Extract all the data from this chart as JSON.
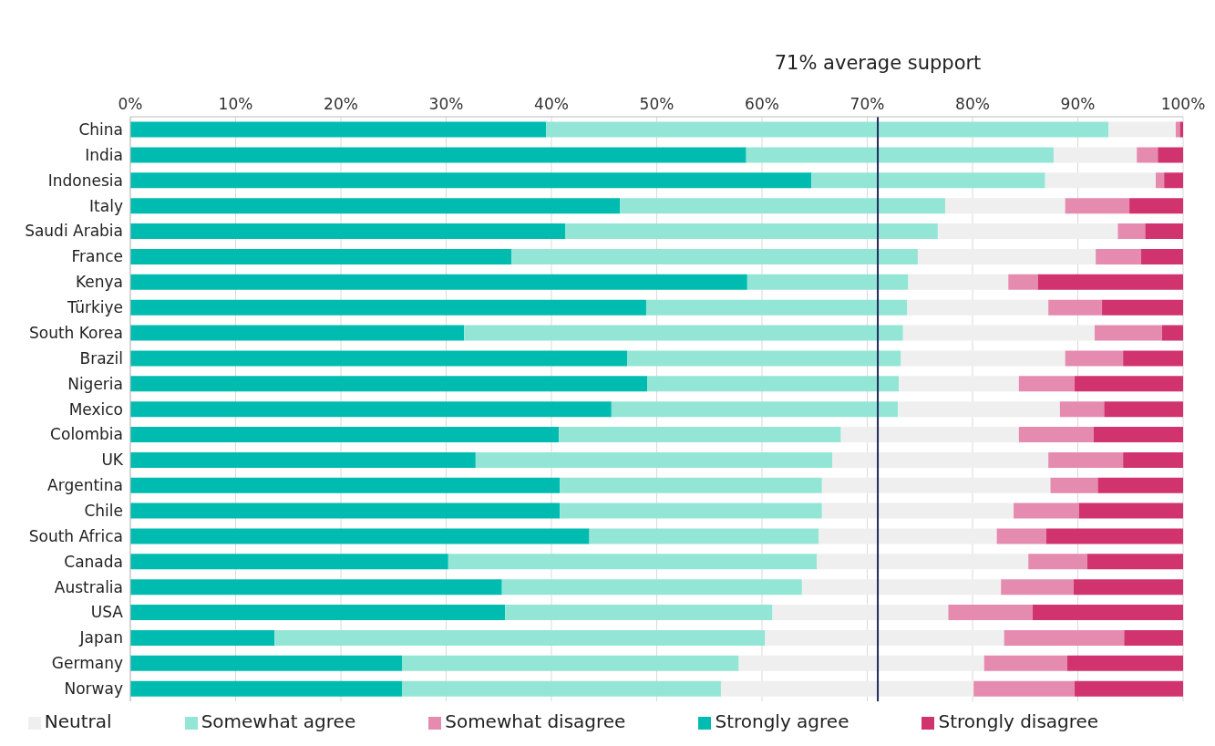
{
  "chart_data": {
    "type": "bar",
    "orientation": "horizontal",
    "stacked": true,
    "categories": [
      "China",
      "India",
      "Indonesia",
      "Italy",
      "Saudi Arabia",
      "France",
      "Kenya",
      "Türkiye",
      "South Korea",
      "Brazil",
      "Nigeria",
      "Mexico",
      "Colombia",
      "UK",
      "Argentina",
      "Chile",
      "South Africa",
      "Canada",
      "Australia",
      "USA",
      "Japan",
      "Germany",
      "Norway"
    ],
    "series": [
      {
        "name": "Strongly agree",
        "color": "#00bcb0",
        "values": [
          39.5,
          58.5,
          64.7,
          46.5,
          41.3,
          36.2,
          58.6,
          49.0,
          31.7,
          47.2,
          49.1,
          45.7,
          40.7,
          32.8,
          40.8,
          40.8,
          43.6,
          30.2,
          35.3,
          35.6,
          13.7,
          25.8,
          25.8
        ]
      },
      {
        "name": "Somewhat agree",
        "color": "#93e6d6",
        "values": [
          53.4,
          29.2,
          22.2,
          30.9,
          35.4,
          38.6,
          15.3,
          24.8,
          41.7,
          26.0,
          23.9,
          27.2,
          26.8,
          33.9,
          24.9,
          24.9,
          21.8,
          35.0,
          28.5,
          25.4,
          46.6,
          32.0,
          30.3
        ]
      },
      {
        "name": "Neutral",
        "color": "#efefef",
        "values": [
          6.4,
          7.9,
          10.5,
          11.4,
          17.1,
          16.9,
          9.5,
          13.4,
          18.2,
          15.6,
          11.4,
          15.4,
          16.9,
          20.5,
          21.7,
          18.2,
          16.9,
          20.1,
          18.9,
          16.7,
          22.7,
          23.3,
          24.0
        ]
      },
      {
        "name": "Somewhat disagree",
        "color": "#e58bb0",
        "values": [
          0.4,
          2.0,
          0.8,
          6.1,
          2.6,
          4.3,
          2.8,
          5.1,
          6.4,
          5.5,
          5.3,
          4.2,
          7.1,
          7.1,
          4.5,
          6.2,
          4.7,
          5.6,
          6.9,
          8.0,
          11.4,
          7.9,
          9.6
        ]
      },
      {
        "name": "Strongly disagree",
        "color": "#d1336f",
        "values": [
          0.3,
          2.4,
          1.8,
          5.1,
          3.6,
          4.0,
          13.8,
          7.7,
          2.0,
          5.7,
          10.3,
          7.5,
          8.5,
          5.7,
          8.1,
          9.9,
          13.0,
          9.1,
          10.4,
          14.3,
          5.6,
          11.0,
          10.3
        ]
      }
    ],
    "xlim": [
      0,
      100
    ],
    "xticks": [
      {
        "value": 0,
        "label": "0%"
      },
      {
        "value": 10,
        "label": "10%"
      },
      {
        "value": 20,
        "label": "20%"
      },
      {
        "value": 30,
        "label": "30%"
      },
      {
        "value": 40,
        "label": "40%"
      },
      {
        "value": 50,
        "label": "50%"
      },
      {
        "value": 60,
        "label": "60%"
      },
      {
        "value": 70,
        "label": "70%"
      },
      {
        "value": 80,
        "label": "80%"
      },
      {
        "value": 90,
        "label": "90%"
      },
      {
        "value": 100,
        "label": "100%"
      }
    ],
    "grid": "x",
    "legend": "bottom",
    "ref_lines": [
      {
        "axis": "x",
        "value": 71,
        "label": "71% average support",
        "color": "#1f2a5c"
      }
    ]
  }
}
